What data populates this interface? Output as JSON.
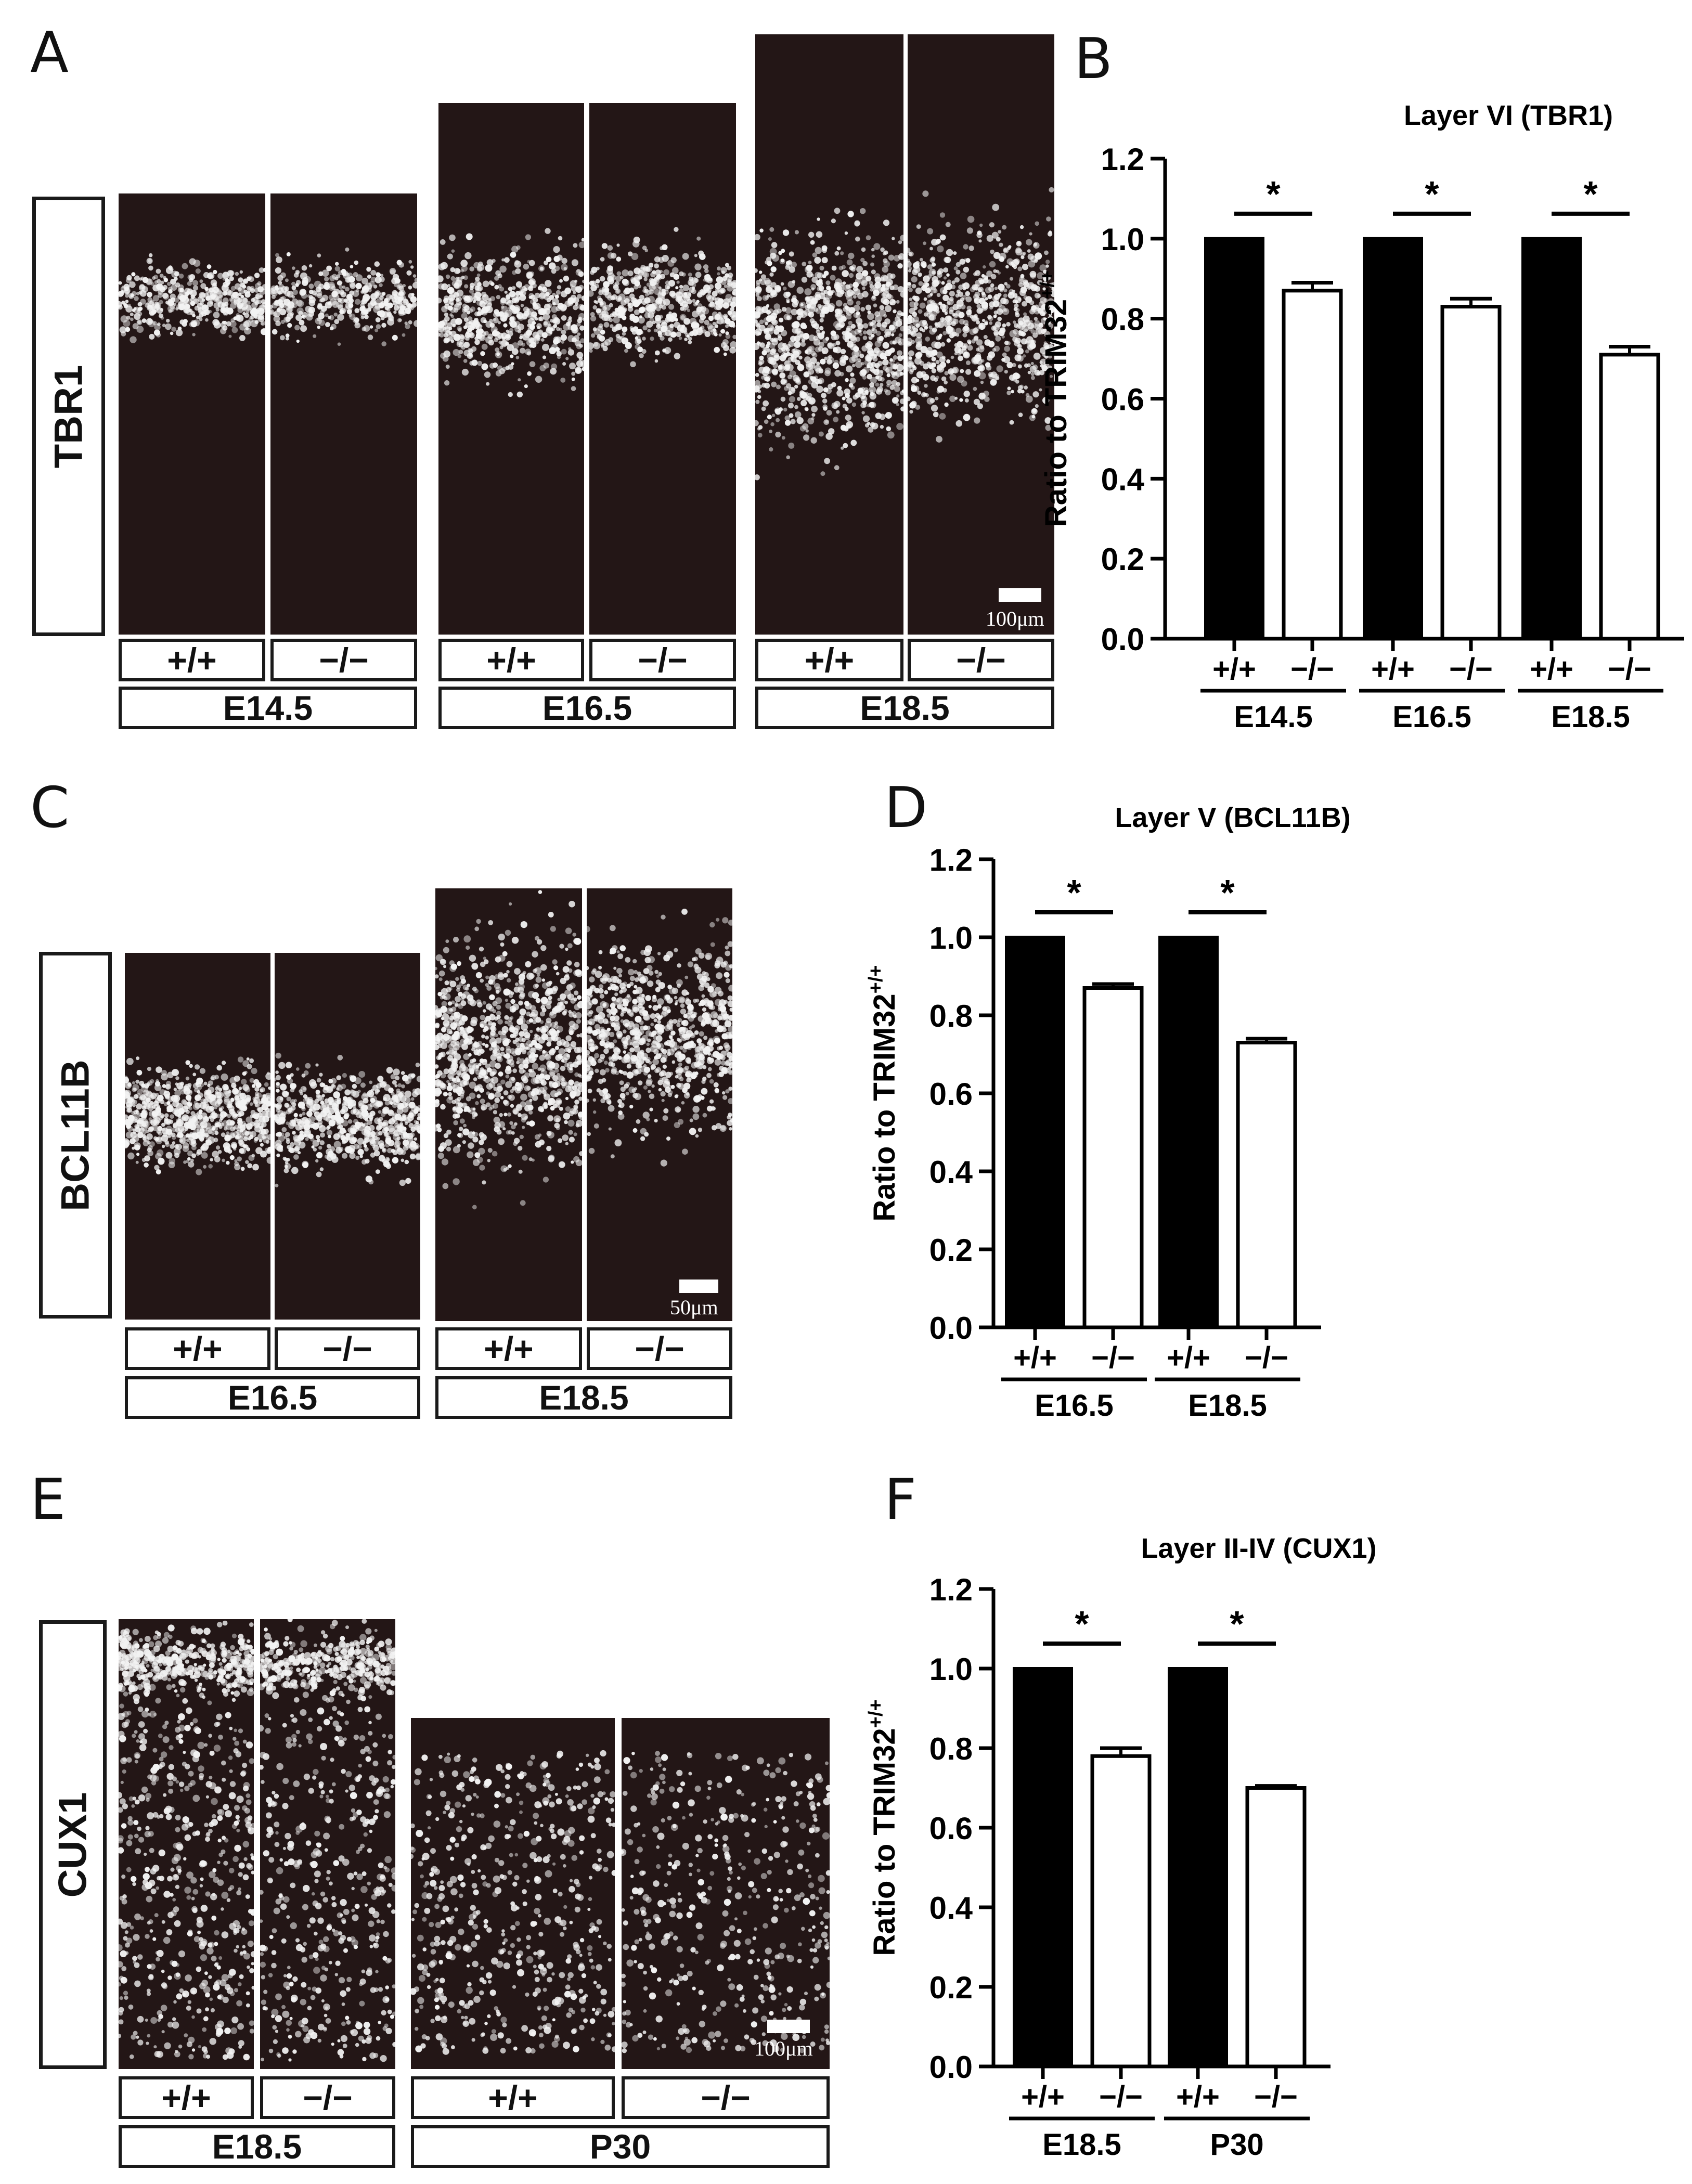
{
  "figure": {
    "panel_labels": {
      "A": "A",
      "B": "B",
      "C": "C",
      "D": "D",
      "E": "E",
      "F": "F"
    },
    "stains": {
      "tbr1": "TBR1",
      "bcl11b": "BCL11B",
      "cux1": "CUX1"
    },
    "genotypes": {
      "wt": "+/+",
      "ko": "−/−"
    },
    "stages": {
      "e14": "E14.5",
      "e16": "E16.5",
      "e18": "E18.5",
      "p30": "P30"
    },
    "scale_bars": {
      "a": "100μm",
      "c": "50μm",
      "e": "100μm"
    }
  },
  "colors": {
    "tissue": "#231616",
    "signal": "#f2f2f2",
    "wt_bar": "#000000",
    "ko_bar": "#ffffff"
  },
  "chart_data": [
    {
      "id": "B",
      "type": "bar",
      "title": "Layer VI (TBR1)",
      "ylabel": "Ratio to TRIM32",
      "ylabel_sup": "+/+",
      "ylim": [
        0,
        1.2
      ],
      "yticks": [
        "0.0",
        "0.2",
        "0.4",
        "0.6",
        "0.8",
        "1.0",
        "1.2"
      ],
      "significance": "*",
      "group_labels": [
        "E14.5",
        "E16.5",
        "E18.5"
      ],
      "bar_labels": [
        "+/+",
        "−/−"
      ],
      "groups": [
        {
          "label": "E14.5",
          "wt": 1.0,
          "ko": 0.87,
          "ko_err": 0.02
        },
        {
          "label": "E16.5",
          "wt": 1.0,
          "ko": 0.83,
          "ko_err": 0.02
        },
        {
          "label": "E18.5",
          "wt": 1.0,
          "ko": 0.71,
          "ko_err": 0.02
        }
      ]
    },
    {
      "id": "D",
      "type": "bar",
      "title": "Layer V (BCL11B)",
      "ylabel": "Ratio to TRIM32",
      "ylabel_sup": "+/+",
      "ylim": [
        0,
        1.2
      ],
      "yticks": [
        "0.0",
        "0.2",
        "0.4",
        "0.6",
        "0.8",
        "1.0",
        "1.2"
      ],
      "significance": "*",
      "group_labels": [
        "E16.5",
        "E18.5"
      ],
      "bar_labels": [
        "+/+",
        "−/−"
      ],
      "groups": [
        {
          "label": "E16.5",
          "wt": 1.0,
          "ko": 0.87,
          "ko_err": 0.01
        },
        {
          "label": "E18.5",
          "wt": 1.0,
          "ko": 0.73,
          "ko_err": 0.01
        }
      ]
    },
    {
      "id": "F",
      "type": "bar",
      "title": "Layer II-IV (CUX1)",
      "ylabel": "Ratio to TRIM32",
      "ylabel_sup": "+/+",
      "ylim": [
        0,
        1.2
      ],
      "yticks": [
        "0.0",
        "0.2",
        "0.4",
        "0.6",
        "0.8",
        "1.0",
        "1.2"
      ],
      "significance": "*",
      "group_labels": [
        "E18.5",
        "P30"
      ],
      "bar_labels": [
        "+/+",
        "−/−"
      ],
      "groups": [
        {
          "label": "E18.5",
          "wt": 1.0,
          "ko": 0.78,
          "ko_err": 0.02
        },
        {
          "label": "P30",
          "wt": 1.0,
          "ko": 0.7,
          "ko_err": 0.005
        }
      ]
    }
  ]
}
